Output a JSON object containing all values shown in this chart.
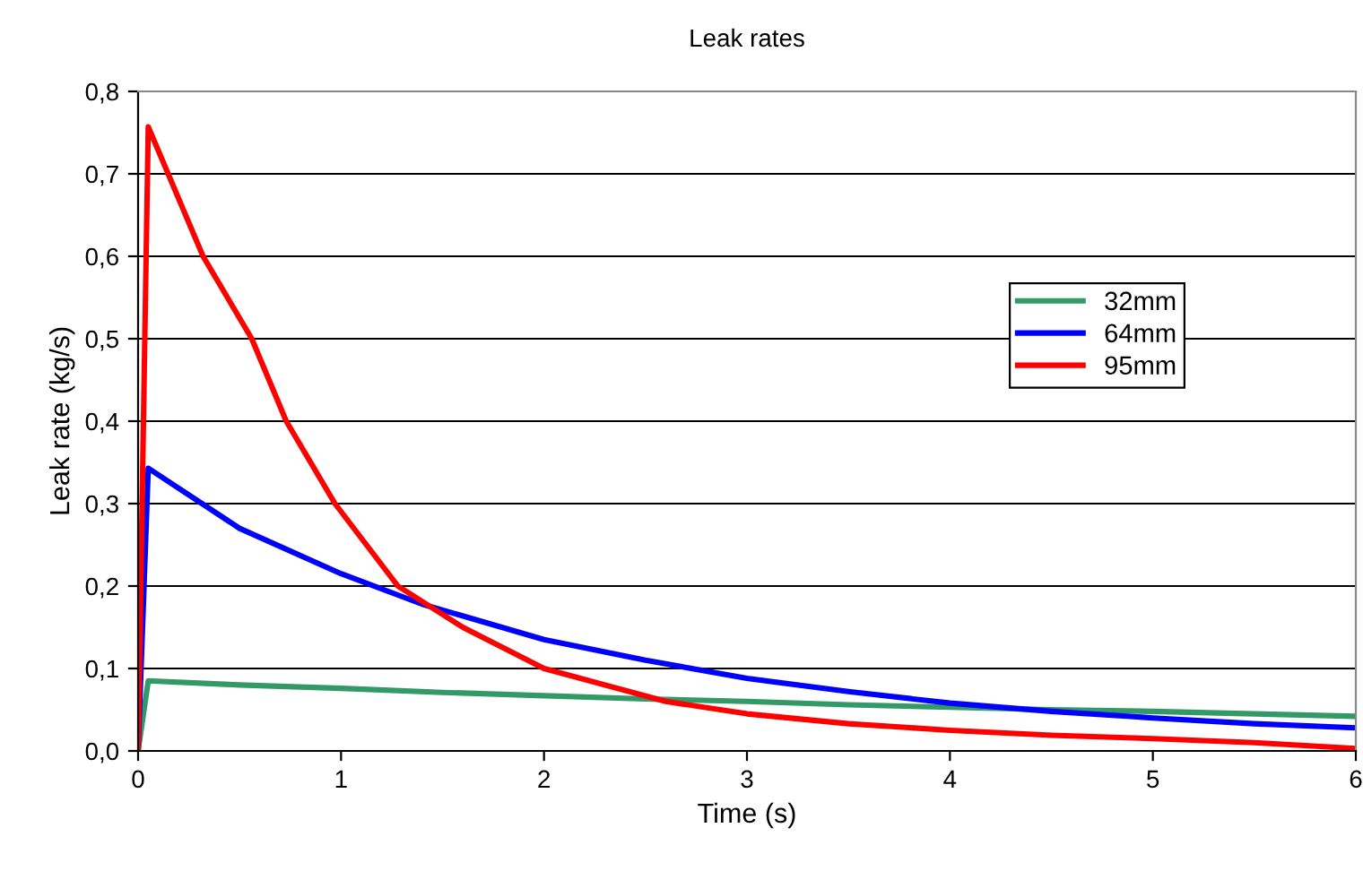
{
  "chart_data": {
    "type": "line",
    "title": "Leak rates",
    "xlabel": "Time (s)",
    "ylabel": "Leak rate (kg/s)",
    "xlim": [
      0,
      6
    ],
    "ylim": [
      0,
      0.8
    ],
    "xticks": [
      0,
      1,
      2,
      3,
      4,
      5,
      6
    ],
    "yticks": [
      {
        "value": 0,
        "label": "0,0"
      },
      {
        "value": 0.1,
        "label": "0,1"
      },
      {
        "value": 0.2,
        "label": "0,2"
      },
      {
        "value": 0.3,
        "label": "0,3"
      },
      {
        "value": 0.4,
        "label": "0,4"
      },
      {
        "value": 0.5,
        "label": "0,5"
      },
      {
        "value": 0.6,
        "label": "0,6"
      },
      {
        "value": 0.7,
        "label": "0,7"
      },
      {
        "value": 0.8,
        "label": "0,8"
      }
    ],
    "grid": "y",
    "legend": "right",
    "marker": "none",
    "line_style": "solid",
    "series": [
      {
        "name": "32mm",
        "color": "#339966",
        "x": [
          0,
          0.05,
          0.5,
          1,
          1.5,
          2,
          2.5,
          3,
          3.5,
          4,
          4.5,
          5,
          5.5,
          6
        ],
        "values": [
          0,
          0.085,
          0.08,
          0.076,
          0.071,
          0.067,
          0.063,
          0.06,
          0.056,
          0.053,
          0.05,
          0.048,
          0.045,
          0.042
        ]
      },
      {
        "name": "64mm",
        "color": "#0000ff",
        "x": [
          0,
          0.05,
          0.5,
          1,
          1.4,
          2,
          2.5,
          3,
          3.5,
          4,
          4.5,
          5,
          5.5,
          6
        ],
        "values": [
          0,
          0.343,
          0.27,
          0.215,
          0.178,
          0.135,
          0.11,
          0.088,
          0.072,
          0.058,
          0.048,
          0.04,
          0.033,
          0.028
        ]
      },
      {
        "name": "95mm",
        "color": "#ff0000",
        "x": [
          0,
          0.05,
          0.32,
          0.56,
          0.73,
          0.97,
          1.28,
          1.6,
          2,
          2.6,
          3,
          3.5,
          4,
          4.5,
          5,
          5.5,
          6
        ],
        "values": [
          0,
          0.757,
          0.6,
          0.5,
          0.4,
          0.3,
          0.2,
          0.15,
          0.1,
          0.06,
          0.045,
          0.033,
          0.025,
          0.019,
          0.015,
          0.01,
          0.003
        ]
      }
    ]
  }
}
